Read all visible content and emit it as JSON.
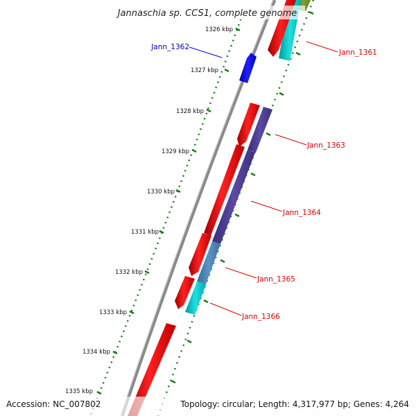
{
  "title": "Jannaschia sp. CCS1, complete genome",
  "footer": {
    "accession": "Accession: NC_007802",
    "summary": "Topology: circular; Length: 4,317,977 bp; Genes: 4,264"
  },
  "axis": {
    "ticks": [
      "1326 kbp",
      "1327 kbp",
      "1328 kbp",
      "1329 kbp",
      "1330 kbp",
      "1331 kbp",
      "1332 kbp",
      "1333 kbp",
      "1334 kbp",
      "1335 kbp"
    ]
  },
  "genes": [
    {
      "label": "Jann_1361",
      "color": "#dd0000"
    },
    {
      "label": "Jann_1362",
      "color": "#0000cc"
    },
    {
      "label": "Jann_1363",
      "color": "#dd0000"
    },
    {
      "label": "Jann_1364",
      "color": "#dd0000"
    },
    {
      "label": "Jann_1365",
      "color": "#dd0000"
    },
    {
      "label": "Jann_1366",
      "color": "#dd0000"
    }
  ],
  "colors": {
    "forward_cds": "#ff0000",
    "reverse_cds": "#0000ff",
    "cog_cyan": "#00cccc",
    "cog_purple": "#4b3c8e",
    "cog_steel": "#4682b4",
    "cog_olive": "#6b8e23",
    "backbone": "#888888",
    "ticks": "#1a7a1a"
  }
}
